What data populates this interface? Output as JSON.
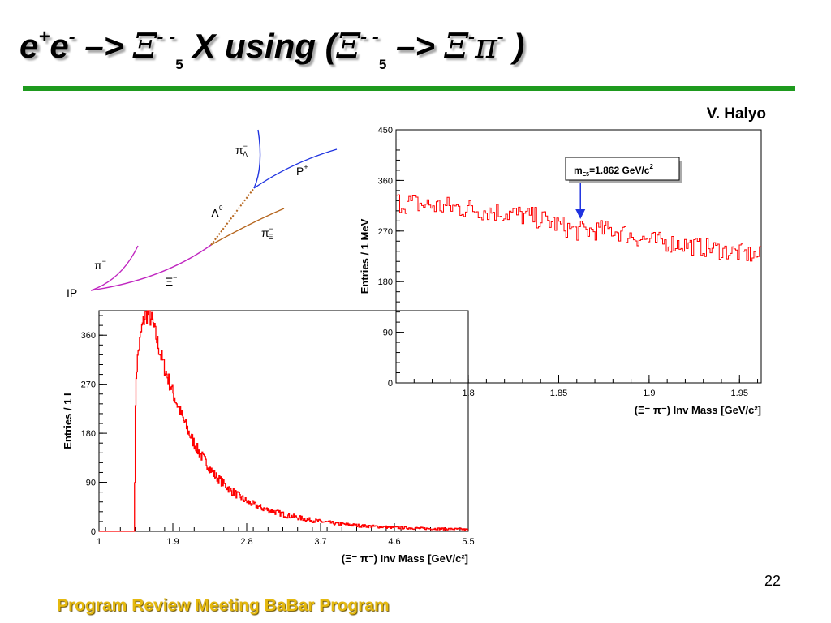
{
  "slide": {
    "title": {
      "part1": "e",
      "sup1": "+",
      "part2": "e",
      "sup2": "-",
      "arrow1": " –> ",
      "xi1": "Ξ",
      "sup3": "- -",
      "sub1": "5",
      "part3": " X  using (",
      "xi2": "Ξ",
      "sup4": "- -",
      "sub2": "5",
      "arrow2": " –> ",
      "xi3": "Ξ",
      "sup5": "-",
      "pi": "π",
      "sup6": "-",
      "part4": " )"
    },
    "author": "V. Halyo",
    "page_number": "22",
    "footer": "Program Review Meeting BaBar Program"
  },
  "diagram": {
    "labels": {
      "pi_lambda": "π",
      "pi_lambda_sup": "−",
      "pi_lambda_sub": "Λ",
      "p": "P",
      "p_sup": "+",
      "lambda": "Λ",
      "lambda_sup": "0",
      "pi_xi": "π",
      "pi_xi_sup": "−",
      "pi_xi_sub": "Ξ",
      "pi": "π",
      "pi_sup": "−",
      "xi": "Ξ",
      "xi_sup": "−",
      "ip": "IP"
    },
    "colors": {
      "pi_lambda": "#1f33e0",
      "proton": "#1f33e0",
      "lambda": "#b5651d",
      "pi_xi": "#b5651d",
      "xi": "#c026c0",
      "pi": "#c026c0"
    }
  },
  "chart_data": [
    {
      "type": "bar",
      "title": "",
      "xlabel": "(Ξ⁻ π⁻) Inv Mass [GeV/c²]",
      "ylabel": "Entries / 1 I",
      "xlim": [
        1,
        5.5
      ],
      "ylim": [
        0,
        405
      ],
      "x_ticks": [
        "1",
        "1.9",
        "2.8",
        "3.7",
        "4.6",
        "5.5"
      ],
      "y_ticks": [
        "0",
        "90",
        "180",
        "270",
        "360"
      ],
      "color": "#ff0000",
      "x": [
        1.43,
        1.45,
        1.48,
        1.52,
        1.56,
        1.6,
        1.65,
        1.7,
        1.75,
        1.8,
        1.9,
        2.0,
        2.1,
        2.2,
        2.4,
        2.6,
        2.8,
        3.0,
        3.3,
        3.6,
        3.9,
        4.2,
        4.6,
        5.0,
        5.4,
        5.5
      ],
      "values": [
        0,
        280,
        330,
        370,
        395,
        400,
        385,
        355,
        325,
        300,
        255,
        215,
        180,
        150,
        105,
        76,
        55,
        42,
        29,
        20,
        14,
        10,
        7,
        5,
        4,
        3
      ]
    },
    {
      "type": "bar",
      "title": "",
      "xlabel": "(Ξ⁻ π⁻) Inv Mass [GeV/c²]",
      "ylabel": "Entries / 1 MeV",
      "xlim": [
        1.76,
        1.962
      ],
      "ylim": [
        0,
        450
      ],
      "x_ticks": [
        "1.8",
        "1.85",
        "1.9",
        "1.95"
      ],
      "y_ticks": [
        "0",
        "90",
        "180",
        "270",
        "360",
        "450"
      ],
      "color": "#ff0000",
      "x": [
        1.76,
        1.78,
        1.8,
        1.82,
        1.84,
        1.86,
        1.88,
        1.9,
        1.92,
        1.94,
        1.96
      ],
      "values": [
        322,
        315,
        310,
        303,
        292,
        270,
        272,
        253,
        246,
        236,
        226
      ],
      "annotation": {
        "label": "m",
        "sub": "Ξ5",
        "text": "=1.862 GeV/c",
        "sup": "2",
        "x": 1.862
      }
    }
  ]
}
